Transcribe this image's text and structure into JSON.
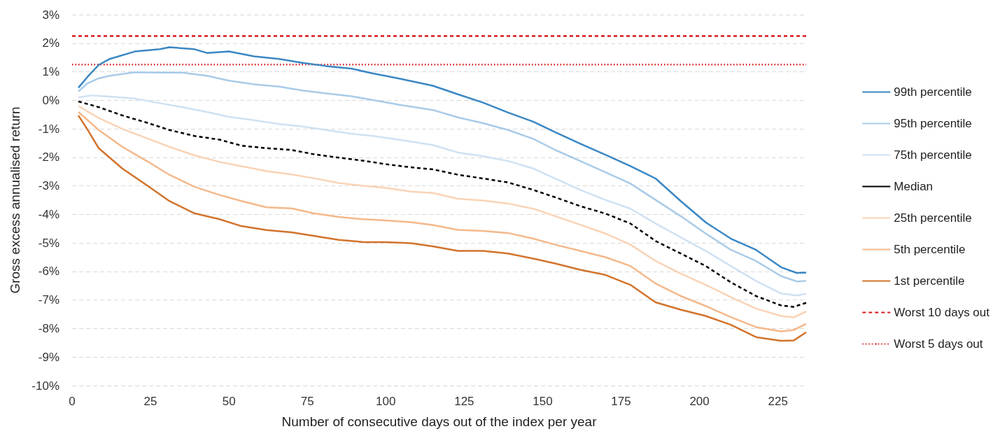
{
  "chart_data": {
    "type": "line",
    "xlabel": "Number of consecutive days out of the index per year",
    "ylabel": "Gross excess annualised return",
    "xlim": [
      0,
      234
    ],
    "xticks": [
      0,
      25,
      50,
      75,
      100,
      125,
      150,
      175,
      200,
      225
    ],
    "ylim": [
      -10,
      3
    ],
    "yticks": [
      {
        "value": 3,
        "label": "3%"
      },
      {
        "value": 2,
        "label": "2%"
      },
      {
        "value": 1,
        "label": "1%"
      },
      {
        "value": 0,
        "label": "0%"
      },
      {
        "value": -1,
        "label": "-1%"
      },
      {
        "value": -2,
        "label": "-2%"
      },
      {
        "value": -3,
        "label": "-3%"
      },
      {
        "value": -4,
        "label": "-4%"
      },
      {
        "value": -5,
        "label": "-5%"
      },
      {
        "value": -6,
        "label": "-6%"
      },
      {
        "value": -7,
        "label": "-7%"
      },
      {
        "value": -8,
        "label": "-8%"
      },
      {
        "value": -9,
        "label": "-9%"
      },
      {
        "value": -10,
        "label": "-10%"
      }
    ],
    "grid": "y",
    "legend": "right",
    "marker": "none",
    "series": [
      {
        "name": "99th percentile",
        "color": "#3a87c4",
        "line_style": "solid",
        "x": [
          2,
          5,
          8.5,
          12,
          20,
          28,
          31,
          39,
          43,
          50,
          58,
          66,
          73,
          81,
          89,
          96,
          104,
          115,
          123,
          131,
          139,
          147,
          154,
          162,
          170,
          178,
          186,
          194,
          202,
          210,
          218,
          226,
          231,
          234
        ],
        "values": [
          0.44,
          0.83,
          1.24,
          1.45,
          1.71,
          1.79,
          1.86,
          1.79,
          1.66,
          1.71,
          1.54,
          1.45,
          1.32,
          1.2,
          1.11,
          0.94,
          0.77,
          0.51,
          0.21,
          -0.08,
          -0.43,
          -0.75,
          -1.12,
          -1.52,
          -1.91,
          -2.31,
          -2.74,
          -3.53,
          -4.28,
          -4.85,
          -5.24,
          -5.85,
          -6.05,
          -6.04
        ]
      },
      {
        "name": "95th percentile",
        "color": "#a9cbe8",
        "line_style": "solid",
        "x": [
          2,
          5,
          8.5,
          12,
          20,
          28,
          35,
          43,
          50,
          58,
          66,
          73,
          81,
          89,
          96,
          104,
          115,
          123,
          131,
          139,
          147,
          154,
          162,
          170,
          178,
          186,
          194,
          202,
          210,
          218,
          226,
          231,
          234
        ],
        "values": [
          0.31,
          0.6,
          0.77,
          0.86,
          0.98,
          0.97,
          0.97,
          0.86,
          0.69,
          0.56,
          0.48,
          0.35,
          0.24,
          0.14,
          0.01,
          -0.15,
          -0.34,
          -0.6,
          -0.8,
          -1.04,
          -1.35,
          -1.74,
          -2.13,
          -2.52,
          -2.92,
          -3.49,
          -4.06,
          -4.67,
          -5.24,
          -5.63,
          -6.16,
          -6.35,
          -6.33
        ]
      },
      {
        "name": "75th percentile",
        "color": "#cfe1f3",
        "line_style": "solid",
        "x": [
          2,
          6,
          12,
          20,
          28,
          35,
          43,
          50,
          58,
          66,
          73,
          81,
          89,
          96,
          104,
          115,
          123,
          131,
          139,
          147,
          154,
          162,
          170,
          178,
          186,
          194,
          202,
          210,
          218,
          226,
          231,
          234
        ],
        "values": [
          0.1,
          0.17,
          0.13,
          0.06,
          -0.1,
          -0.24,
          -0.41,
          -0.58,
          -0.7,
          -0.83,
          -0.91,
          -1.04,
          -1.17,
          -1.25,
          -1.38,
          -1.57,
          -1.83,
          -1.96,
          -2.13,
          -2.39,
          -2.74,
          -3.14,
          -3.49,
          -3.8,
          -4.32,
          -4.8,
          -5.28,
          -5.81,
          -6.33,
          -6.77,
          -6.84,
          -6.78
        ]
      },
      {
        "name": "Median",
        "color": "#000000",
        "line_style": "dashed",
        "x": [
          2,
          8.5,
          16,
          24,
          31,
          39,
          47,
          54,
          62,
          70,
          77,
          85,
          93,
          100,
          108,
          115,
          123,
          131,
          139,
          147,
          154,
          162,
          170,
          178,
          186,
          194,
          202,
          210,
          218,
          226,
          230,
          234
        ],
        "values": [
          -0.04,
          -0.24,
          -0.53,
          -0.79,
          -1.04,
          -1.25,
          -1.38,
          -1.59,
          -1.68,
          -1.74,
          -1.89,
          -2.01,
          -2.12,
          -2.24,
          -2.35,
          -2.42,
          -2.61,
          -2.74,
          -2.88,
          -3.14,
          -3.4,
          -3.71,
          -3.97,
          -4.32,
          -4.93,
          -5.37,
          -5.81,
          -6.38,
          -6.86,
          -7.19,
          -7.24,
          -7.1
        ]
      },
      {
        "name": "25th percentile",
        "color": "#f9d3b6",
        "line_style": "solid",
        "x": [
          2,
          8.5,
          16,
          24,
          31,
          39,
          47,
          54,
          62,
          70,
          77,
          85,
          93,
          100,
          108,
          115,
          123,
          131,
          139,
          147,
          154,
          162,
          170,
          178,
          186,
          194,
          202,
          210,
          218,
          226,
          230,
          234
        ],
        "values": [
          -0.2,
          -0.62,
          -1.0,
          -1.34,
          -1.63,
          -1.93,
          -2.16,
          -2.31,
          -2.48,
          -2.6,
          -2.73,
          -2.9,
          -3.0,
          -3.07,
          -3.2,
          -3.25,
          -3.45,
          -3.51,
          -3.62,
          -3.8,
          -4.06,
          -4.36,
          -4.67,
          -5.06,
          -5.63,
          -6.07,
          -6.47,
          -6.9,
          -7.3,
          -7.56,
          -7.61,
          -7.4
        ]
      },
      {
        "name": "5th percentile",
        "color": "#f4b88a",
        "line_style": "solid",
        "x": [
          2,
          8.5,
          16,
          24,
          31,
          39,
          47,
          54,
          62,
          70,
          77,
          85,
          93,
          100,
          108,
          115,
          123,
          131,
          139,
          147,
          154,
          162,
          170,
          178,
          186,
          194,
          202,
          210,
          218,
          226,
          230,
          234
        ],
        "values": [
          -0.41,
          -1.04,
          -1.63,
          -2.14,
          -2.61,
          -3.03,
          -3.32,
          -3.53,
          -3.75,
          -3.79,
          -3.96,
          -4.09,
          -4.17,
          -4.21,
          -4.27,
          -4.37,
          -4.54,
          -4.58,
          -4.65,
          -4.85,
          -5.06,
          -5.28,
          -5.5,
          -5.81,
          -6.42,
          -6.86,
          -7.21,
          -7.6,
          -7.95,
          -8.1,
          -8.05,
          -7.84
        ]
      },
      {
        "name": "1st percentile",
        "color": "#d2732c",
        "line_style": "solid",
        "x": [
          2,
          5,
          8.5,
          16,
          24,
          31,
          39,
          47,
          54,
          62,
          70,
          77,
          85,
          93,
          100,
          108,
          115,
          123,
          131,
          139,
          147,
          154,
          162,
          170,
          178,
          186,
          194,
          202,
          210,
          218,
          226,
          230,
          234
        ],
        "values": [
          -0.53,
          -1.04,
          -1.68,
          -2.39,
          -2.99,
          -3.53,
          -3.96,
          -4.17,
          -4.41,
          -4.55,
          -4.63,
          -4.75,
          -4.89,
          -4.97,
          -4.97,
          -5.01,
          -5.12,
          -5.28,
          -5.28,
          -5.37,
          -5.55,
          -5.72,
          -5.94,
          -6.12,
          -6.47,
          -7.08,
          -7.34,
          -7.56,
          -7.87,
          -8.3,
          -8.43,
          -8.42,
          -8.13
        ]
      }
    ],
    "ref_lines": [
      {
        "axis": "y",
        "value": 2.25,
        "label": "Worst 10 days out",
        "color": "#d7191c",
        "line_style": "dashed"
      },
      {
        "axis": "y",
        "value": 1.25,
        "label": "Worst 5 days out",
        "color": "#d7191c",
        "line_style": "dotted"
      }
    ]
  }
}
